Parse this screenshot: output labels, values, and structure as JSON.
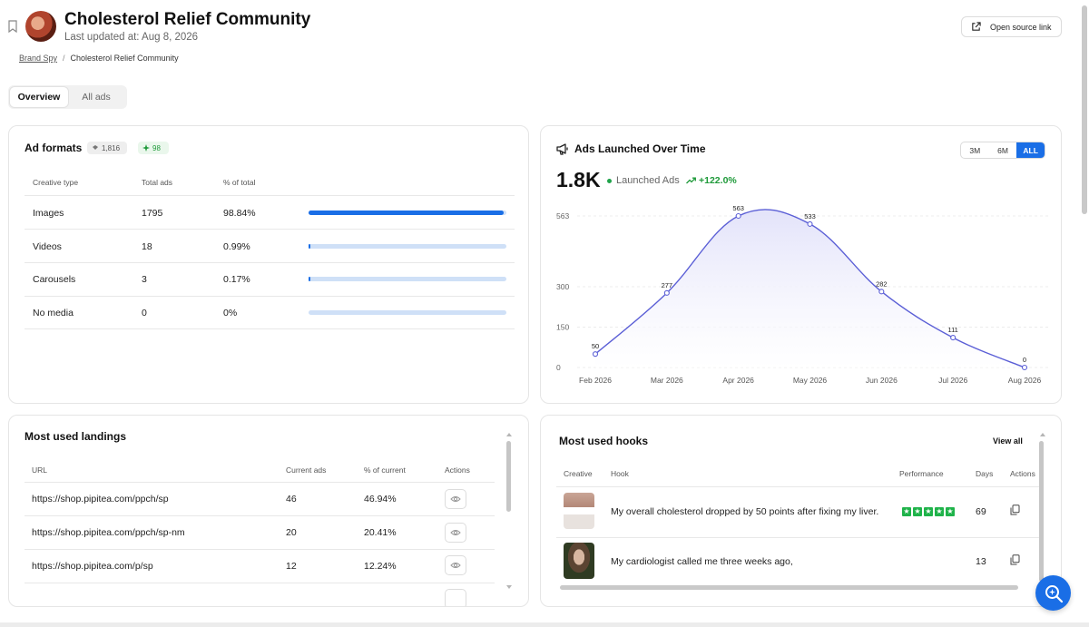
{
  "header": {
    "title": "Cholesterol Relief Community",
    "updated": "Last updated at: Aug 8, 2026",
    "open_source_label": "Open source link"
  },
  "breadcrumb": {
    "root": "Brand Spy",
    "sep": "/",
    "current": "Cholesterol Relief Community"
  },
  "tabs": [
    {
      "label": "Overview",
      "active": true
    },
    {
      "label": "All ads",
      "active": false
    }
  ],
  "ad_formats": {
    "title": "Ad formats",
    "badge_total": "1,816",
    "badge_new": "98",
    "columns": [
      "Creative type",
      "Total ads",
      "% of total"
    ],
    "rows": [
      {
        "type": "Images",
        "total": "1795",
        "pct": "98.84%",
        "fraction": 0.9884
      },
      {
        "type": "Videos",
        "total": "18",
        "pct": "0.99%",
        "fraction": 0.0099
      },
      {
        "type": "Carousels",
        "total": "3",
        "pct": "0.17%",
        "fraction": 0.0017
      },
      {
        "type": "No media",
        "total": "0",
        "pct": "0%",
        "fraction": 0
      }
    ]
  },
  "ads_launched": {
    "title": "Ads Launched Over Time",
    "ranges": [
      {
        "label": "3M",
        "active": false
      },
      {
        "label": "6M",
        "active": false
      },
      {
        "label": "ALL",
        "active": true
      }
    ],
    "total": "1.8K",
    "legend": "Launched Ads",
    "growth": "+122.0%",
    "colors": {
      "line": "#5b5fd6",
      "fill": "#e3e3fa"
    }
  },
  "chart_data": {
    "type": "area",
    "x": [
      "Feb 2026",
      "Mar 2026",
      "Apr 2026",
      "May 2026",
      "Jun 2026",
      "Jul 2026",
      "Aug 2026"
    ],
    "series": [
      {
        "name": "Launched Ads",
        "values": [
          50,
          277,
          563,
          533,
          282,
          111,
          0
        ]
      }
    ],
    "yticks": [
      0,
      150,
      300,
      563
    ],
    "ylim": [
      0,
      563
    ],
    "grid": true
  },
  "landings": {
    "title": "Most used landings",
    "columns": [
      "URL",
      "Current ads",
      "% of current",
      "Actions"
    ],
    "rows": [
      {
        "url": "https://shop.pipitea.com/ppch/sp",
        "ads": "46",
        "pct": "46.94%"
      },
      {
        "url": "https://shop.pipitea.com/ppch/sp-nm",
        "ads": "20",
        "pct": "20.41%"
      },
      {
        "url": "https://shop.pipitea.com/p/sp",
        "ads": "12",
        "pct": "12.24%"
      }
    ]
  },
  "hooks": {
    "title": "Most used hooks",
    "view_all": "View all",
    "columns": [
      "Creative",
      "Hook",
      "Performance",
      "Days",
      "Actions"
    ],
    "rows": [
      {
        "hook": "My overall cholesterol dropped by 50 points after fixing my liver.",
        "stars": 5,
        "days": "69"
      },
      {
        "hook": "My cardiologist called me three weeks ago,",
        "stars": 0,
        "days": "13"
      }
    ]
  }
}
